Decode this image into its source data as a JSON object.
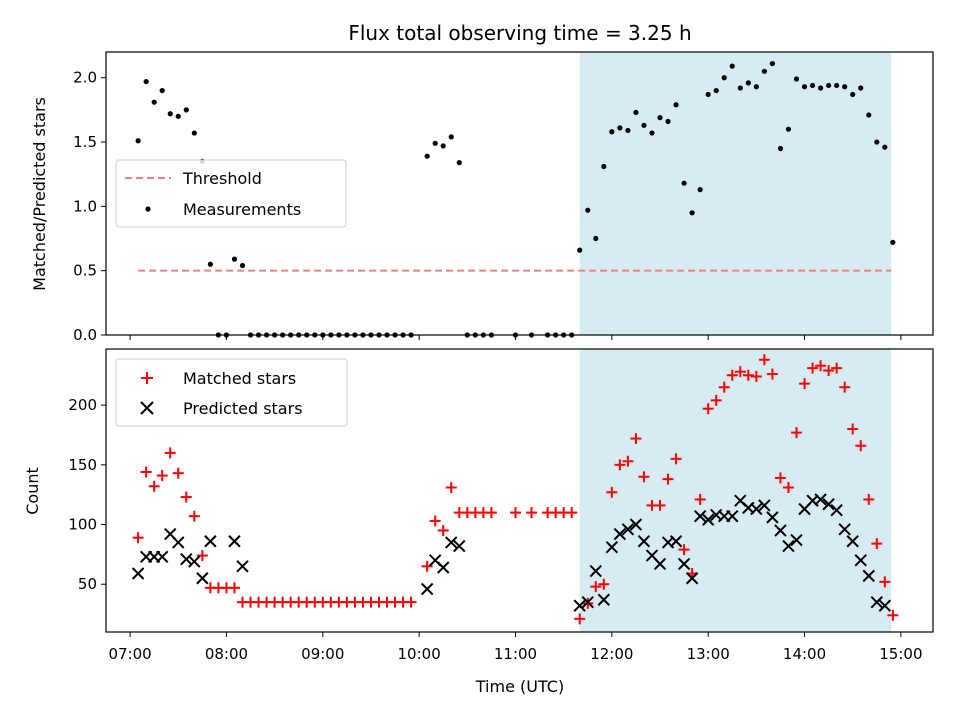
{
  "chart_data": [
    {
      "type": "scatter",
      "title": "Flux total observing time = 3.25 h",
      "xlabel": "",
      "ylabel": "Matched/Predicted stars",
      "xlim": [
        "06:45",
        "15:20"
      ],
      "ylim": [
        0,
        2.2
      ],
      "yticks": [
        0.0,
        0.5,
        1.0,
        1.5,
        2.0
      ],
      "ytick_labels": [
        "0.0",
        "0.5",
        "1.0",
        "1.5",
        "2.0"
      ],
      "legend_position": "center-left",
      "highlight_span": {
        "start": "11:40",
        "end": "14:54",
        "color": "#add8e6"
      },
      "threshold": {
        "name": "Threshold",
        "value": 0.5,
        "start": "07:05",
        "end": "14:54",
        "color": "#f08080"
      },
      "series": [
        {
          "name": "Measurements",
          "color": "#000000",
          "marker": "dot",
          "points": [
            [
              "07:05",
              1.51
            ],
            [
              "07:10",
              1.97
            ],
            [
              "07:15",
              1.81
            ],
            [
              "07:20",
              1.9
            ],
            [
              "07:25",
              1.72
            ],
            [
              "07:30",
              1.7
            ],
            [
              "07:35",
              1.75
            ],
            [
              "07:40",
              1.57
            ],
            [
              "07:45",
              1.35
            ],
            [
              "07:50",
              0.55
            ],
            [
              "07:55",
              0.0
            ],
            [
              "08:00",
              0.0
            ],
            [
              "08:05",
              0.59
            ],
            [
              "08:10",
              0.54
            ],
            [
              "08:15",
              0.0
            ],
            [
              "08:20",
              0.0
            ],
            [
              "08:25",
              0.0
            ],
            [
              "08:30",
              0.0
            ],
            [
              "08:35",
              0.0
            ],
            [
              "08:40",
              0.0
            ],
            [
              "08:45",
              0.0
            ],
            [
              "08:50",
              0.0
            ],
            [
              "08:55",
              0.0
            ],
            [
              "09:00",
              0.0
            ],
            [
              "09:05",
              0.0
            ],
            [
              "09:10",
              0.0
            ],
            [
              "09:15",
              0.0
            ],
            [
              "09:20",
              0.0
            ],
            [
              "09:25",
              0.0
            ],
            [
              "09:30",
              0.0
            ],
            [
              "09:35",
              0.0
            ],
            [
              "09:40",
              0.0
            ],
            [
              "09:45",
              0.0
            ],
            [
              "09:50",
              0.0
            ],
            [
              "09:55",
              0.0
            ],
            [
              "10:05",
              1.39
            ],
            [
              "10:10",
              1.49
            ],
            [
              "10:15",
              1.47
            ],
            [
              "10:20",
              1.54
            ],
            [
              "10:25",
              1.34
            ],
            [
              "10:30",
              0.0
            ],
            [
              "10:35",
              0.0
            ],
            [
              "10:40",
              0.0
            ],
            [
              "10:45",
              0.0
            ],
            [
              "11:00",
              0.0
            ],
            [
              "11:10",
              0.0
            ],
            [
              "11:20",
              0.0
            ],
            [
              "11:25",
              0.0
            ],
            [
              "11:30",
              0.0
            ],
            [
              "11:35",
              0.0
            ],
            [
              "11:40",
              0.66
            ],
            [
              "11:45",
              0.97
            ],
            [
              "11:50",
              0.75
            ],
            [
              "11:55",
              1.31
            ],
            [
              "12:00",
              1.58
            ],
            [
              "12:05",
              1.61
            ],
            [
              "12:10",
              1.59
            ],
            [
              "12:15",
              1.73
            ],
            [
              "12:20",
              1.63
            ],
            [
              "12:25",
              1.57
            ],
            [
              "12:30",
              1.69
            ],
            [
              "12:35",
              1.66
            ],
            [
              "12:40",
              1.79
            ],
            [
              "12:45",
              1.18
            ],
            [
              "12:50",
              0.95
            ],
            [
              "12:55",
              1.13
            ],
            [
              "13:00",
              1.87
            ],
            [
              "13:05",
              1.9
            ],
            [
              "13:10",
              2.0
            ],
            [
              "13:15",
              2.09
            ],
            [
              "13:20",
              1.92
            ],
            [
              "13:25",
              1.96
            ],
            [
              "13:30",
              1.93
            ],
            [
              "13:35",
              2.05
            ],
            [
              "13:40",
              2.11
            ],
            [
              "13:45",
              1.45
            ],
            [
              "13:50",
              1.6
            ],
            [
              "13:55",
              1.99
            ],
            [
              "14:00",
              1.93
            ],
            [
              "14:05",
              1.94
            ],
            [
              "14:10",
              1.92
            ],
            [
              "14:15",
              1.94
            ],
            [
              "14:20",
              1.94
            ],
            [
              "14:25",
              1.93
            ],
            [
              "14:30",
              1.87
            ],
            [
              "14:35",
              1.92
            ],
            [
              "14:40",
              1.71
            ],
            [
              "14:45",
              1.5
            ],
            [
              "14:50",
              1.46
            ],
            [
              "14:55",
              0.72
            ]
          ]
        }
      ]
    },
    {
      "type": "scatter",
      "title": "",
      "xlabel": "Time (UTC)",
      "ylabel": "Count",
      "xlim": [
        "06:45",
        "15:20"
      ],
      "xticks": [
        "07:00",
        "08:00",
        "09:00",
        "10:00",
        "11:00",
        "12:00",
        "13:00",
        "14:00",
        "15:00"
      ],
      "ylim": [
        10,
        247
      ],
      "yticks": [
        50,
        100,
        150,
        200
      ],
      "ytick_labels": [
        "50",
        "100",
        "150",
        "200"
      ],
      "legend_position": "top-left",
      "highlight_span": {
        "start": "11:40",
        "end": "14:54",
        "color": "#add8e6"
      },
      "series": [
        {
          "name": "Matched stars",
          "color": "#ff0000",
          "marker": "plus",
          "points": [
            [
              "07:05",
              89
            ],
            [
              "07:10",
              144
            ],
            [
              "07:15",
              132
            ],
            [
              "07:20",
              141
            ],
            [
              "07:25",
              160
            ],
            [
              "07:30",
              143
            ],
            [
              "07:35",
              123
            ],
            [
              "07:40",
              107
            ],
            [
              "07:45",
              74
            ],
            [
              "07:50",
              47
            ],
            [
              "07:55",
              47
            ],
            [
              "08:00",
              47
            ],
            [
              "08:05",
              47
            ],
            [
              "08:10",
              35
            ],
            [
              "08:15",
              35
            ],
            [
              "08:20",
              35
            ],
            [
              "08:25",
              35
            ],
            [
              "08:30",
              35
            ],
            [
              "08:35",
              35
            ],
            [
              "08:40",
              35
            ],
            [
              "08:45",
              35
            ],
            [
              "08:50",
              35
            ],
            [
              "08:55",
              35
            ],
            [
              "09:00",
              35
            ],
            [
              "09:05",
              35
            ],
            [
              "09:10",
              35
            ],
            [
              "09:15",
              35
            ],
            [
              "09:20",
              35
            ],
            [
              "09:25",
              35
            ],
            [
              "09:30",
              35
            ],
            [
              "09:35",
              35
            ],
            [
              "09:40",
              35
            ],
            [
              "09:45",
              35
            ],
            [
              "09:50",
              35
            ],
            [
              "09:55",
              35
            ],
            [
              "10:05",
              65
            ],
            [
              "10:10",
              103
            ],
            [
              "10:15",
              95
            ],
            [
              "10:20",
              131
            ],
            [
              "10:25",
              110
            ],
            [
              "10:30",
              110
            ],
            [
              "10:35",
              110
            ],
            [
              "10:40",
              110
            ],
            [
              "10:45",
              110
            ],
            [
              "11:00",
              110
            ],
            [
              "11:10",
              110
            ],
            [
              "11:20",
              110
            ],
            [
              "11:25",
              110
            ],
            [
              "11:30",
              110
            ],
            [
              "11:35",
              110
            ],
            [
              "11:40",
              21
            ],
            [
              "11:45",
              34
            ],
            [
              "11:50",
              48
            ],
            [
              "11:55",
              50
            ],
            [
              "12:00",
              127
            ],
            [
              "12:05",
              150
            ],
            [
              "12:10",
              153
            ],
            [
              "12:15",
              172
            ],
            [
              "12:20",
              140
            ],
            [
              "12:25",
              116
            ],
            [
              "12:30",
              116
            ],
            [
              "12:35",
              138
            ],
            [
              "12:40",
              155
            ],
            [
              "12:45",
              79
            ],
            [
              "12:50",
              59
            ],
            [
              "12:55",
              121
            ],
            [
              "13:00",
              197
            ],
            [
              "13:05",
              204
            ],
            [
              "13:10",
              215
            ],
            [
              "13:15",
              225
            ],
            [
              "13:20",
              228
            ],
            [
              "13:25",
              225
            ],
            [
              "13:30",
              224
            ],
            [
              "13:35",
              238
            ],
            [
              "13:40",
              226
            ],
            [
              "13:45",
              139
            ],
            [
              "13:50",
              131
            ],
            [
              "13:55",
              177
            ],
            [
              "14:00",
              218
            ],
            [
              "14:05",
              231
            ],
            [
              "14:10",
              233
            ],
            [
              "14:15",
              229
            ],
            [
              "14:20",
              231
            ],
            [
              "14:25",
              215
            ],
            [
              "14:30",
              180
            ],
            [
              "14:35",
              166
            ],
            [
              "14:40",
              121
            ],
            [
              "14:45",
              84
            ],
            [
              "14:50",
              52
            ],
            [
              "14:55",
              24
            ]
          ]
        },
        {
          "name": "Predicted stars",
          "color": "#000000",
          "marker": "x",
          "points": [
            [
              "07:05",
              59
            ],
            [
              "07:10",
              73
            ],
            [
              "07:15",
              73
            ],
            [
              "07:20",
              73
            ],
            [
              "07:25",
              92
            ],
            [
              "07:30",
              85
            ],
            [
              "07:35",
              71
            ],
            [
              "07:40",
              69
            ],
            [
              "07:45",
              55
            ],
            [
              "07:50",
              86
            ],
            [
              "08:05",
              86
            ],
            [
              "08:10",
              65
            ],
            [
              "10:05",
              46
            ],
            [
              "10:10",
              70
            ],
            [
              "10:15",
              64
            ],
            [
              "10:20",
              85
            ],
            [
              "10:25",
              82
            ],
            [
              "11:40",
              32
            ],
            [
              "11:45",
              35
            ],
            [
              "11:50",
              61
            ],
            [
              "11:55",
              37
            ],
            [
              "12:00",
              81
            ],
            [
              "12:05",
              92
            ],
            [
              "12:10",
              96
            ],
            [
              "12:15",
              100
            ],
            [
              "12:20",
              86
            ],
            [
              "12:25",
              74
            ],
            [
              "12:30",
              67
            ],
            [
              "12:35",
              85
            ],
            [
              "12:40",
              86
            ],
            [
              "12:45",
              67
            ],
            [
              "12:50",
              55
            ],
            [
              "12:55",
              107
            ],
            [
              "13:00",
              104
            ],
            [
              "13:05",
              108
            ],
            [
              "13:10",
              107
            ],
            [
              "13:15",
              107
            ],
            [
              "13:20",
              120
            ],
            [
              "13:25",
              114
            ],
            [
              "13:30",
              113
            ],
            [
              "13:35",
              116
            ],
            [
              "13:40",
              106
            ],
            [
              "13:45",
              95
            ],
            [
              "13:50",
              82
            ],
            [
              "13:55",
              87
            ],
            [
              "14:00",
              113
            ],
            [
              "14:05",
              120
            ],
            [
              "14:10",
              121
            ],
            [
              "14:15",
              117
            ],
            [
              "14:20",
              112
            ],
            [
              "14:25",
              96
            ],
            [
              "14:30",
              86
            ],
            [
              "14:35",
              70
            ],
            [
              "14:40",
              57
            ],
            [
              "14:45",
              35
            ],
            [
              "14:50",
              32
            ]
          ]
        }
      ]
    }
  ]
}
